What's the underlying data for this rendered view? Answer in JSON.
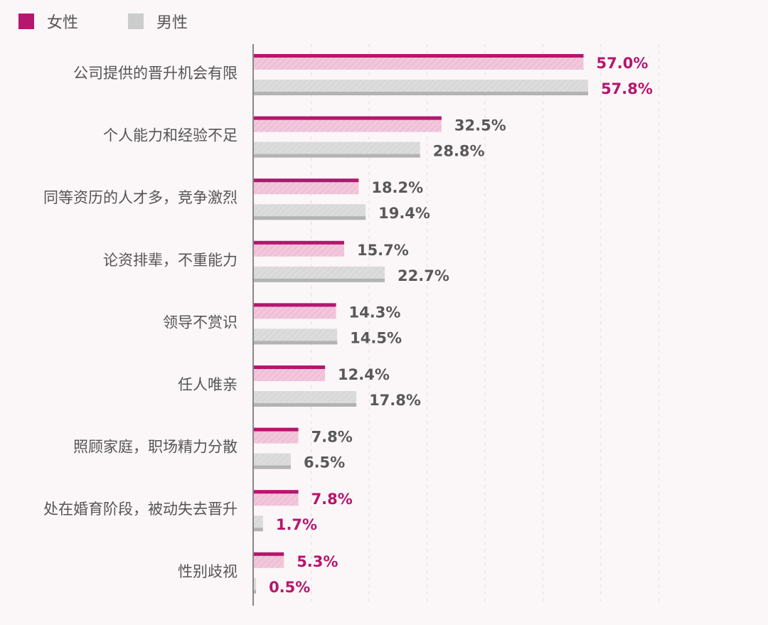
{
  "colors": {
    "female_accent": "#b5166e",
    "female_fill": "#f2c7dc",
    "male_fill": "#dcdcdc",
    "male_bottom": "#b3b3b3",
    "label_pink": "#b5166e",
    "label_gray": "#595959",
    "axis": "#888888",
    "category_text": "#555555",
    "background": "#fbf6f8"
  },
  "legend": {
    "female": "女性",
    "male": "男性"
  },
  "chart_data": {
    "type": "bar",
    "orientation": "horizontal",
    "legend_position": "top-left",
    "grid": true,
    "xlim": [
      0,
      70
    ],
    "categories": [
      "公司提供的晋升机会有限",
      "个人能力和经验不足",
      "同等资历的人才多，竞争激烈",
      "论资排辈，不重能力",
      "领导不赏识",
      "任人唯亲",
      "照顾家庭，职场精力分散",
      "处在婚育阶段，被动失去晋升",
      "性别歧视"
    ],
    "series": [
      {
        "name": "女性",
        "values": [
          57.0,
          32.5,
          18.2,
          15.7,
          14.3,
          12.4,
          7.8,
          7.8,
          5.3
        ],
        "labels": [
          "57.0%",
          "32.5%",
          "18.2%",
          "15.7%",
          "14.3%",
          "12.4%",
          "7.8%",
          "7.8%",
          "5.3%"
        ],
        "highlight": [
          true,
          false,
          false,
          false,
          false,
          false,
          false,
          true,
          true
        ]
      },
      {
        "name": "男性",
        "values": [
          57.8,
          28.8,
          19.4,
          22.7,
          14.5,
          17.8,
          6.5,
          1.7,
          0.5
        ],
        "labels": [
          "57.8%",
          "28.8%",
          "19.4%",
          "22.7%",
          "14.5%",
          "17.8%",
          "6.5%",
          "1.7%",
          "0.5%"
        ],
        "highlight": [
          true,
          false,
          false,
          false,
          false,
          false,
          false,
          true,
          true
        ]
      }
    ]
  }
}
